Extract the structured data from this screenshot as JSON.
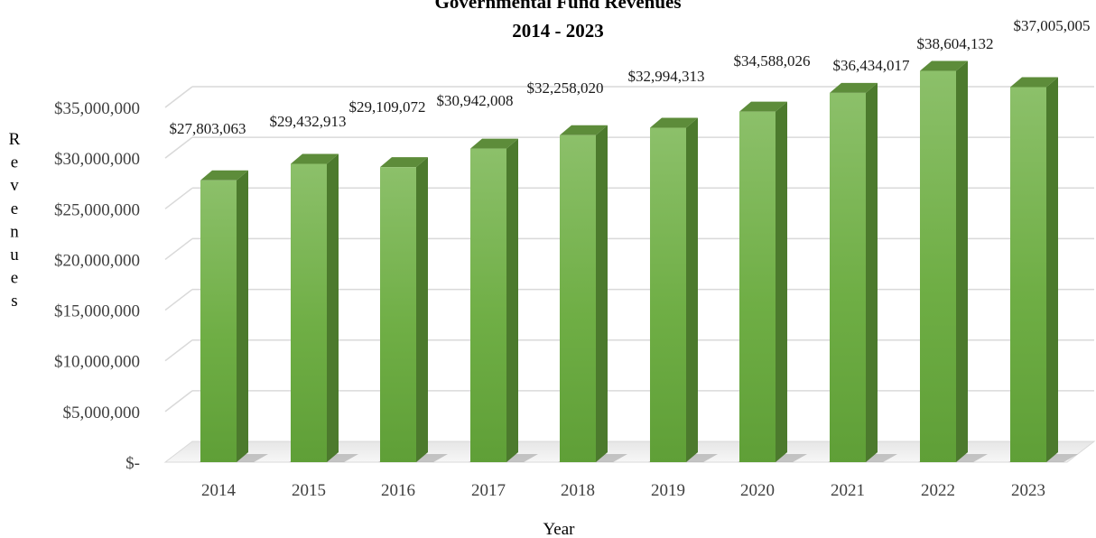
{
  "chart_data": {
    "type": "bar",
    "title": "Governmental Fund Revenues",
    "subtitle": "2014 - 2023",
    "xlabel": "Year",
    "ylabel": "Revenues",
    "categories": [
      "2014",
      "2015",
      "2016",
      "2017",
      "2018",
      "2019",
      "2020",
      "2021",
      "2022",
      "2023"
    ],
    "values": [
      27803063,
      29432913,
      29109072,
      30942008,
      32258020,
      32994313,
      34588026,
      36434017,
      38604132,
      37005005
    ],
    "data_labels": [
      "$27,803,063",
      "$29,432,913",
      "$29,109,072",
      "$30,942,008",
      "$32,258,020",
      "$32,994,313",
      "$34,588,026",
      "$36,434,017",
      "$38,604,132",
      "$37,005,005"
    ],
    "y_ticks": [
      0,
      5000000,
      10000000,
      15000000,
      20000000,
      25000000,
      30000000,
      35000000
    ],
    "y_tick_labels": [
      "$-",
      "$5,000,000",
      "$10,000,000",
      "$15,000,000",
      "$20,000,000",
      "$25,000,000",
      "$30,000,000",
      "$35,000,000"
    ],
    "ylim": [
      0,
      35000000
    ],
    "grid": true,
    "legend": "none",
    "style": "3d-column",
    "colors": {
      "bar_light": "#8cc06a",
      "bar_mid": "#6fae45",
      "bar_dark": "#4f8a2a",
      "bar_side": "#4c7a2d",
      "bar_top": "#5d8c3a",
      "gridline": "#d9d9d9"
    }
  }
}
